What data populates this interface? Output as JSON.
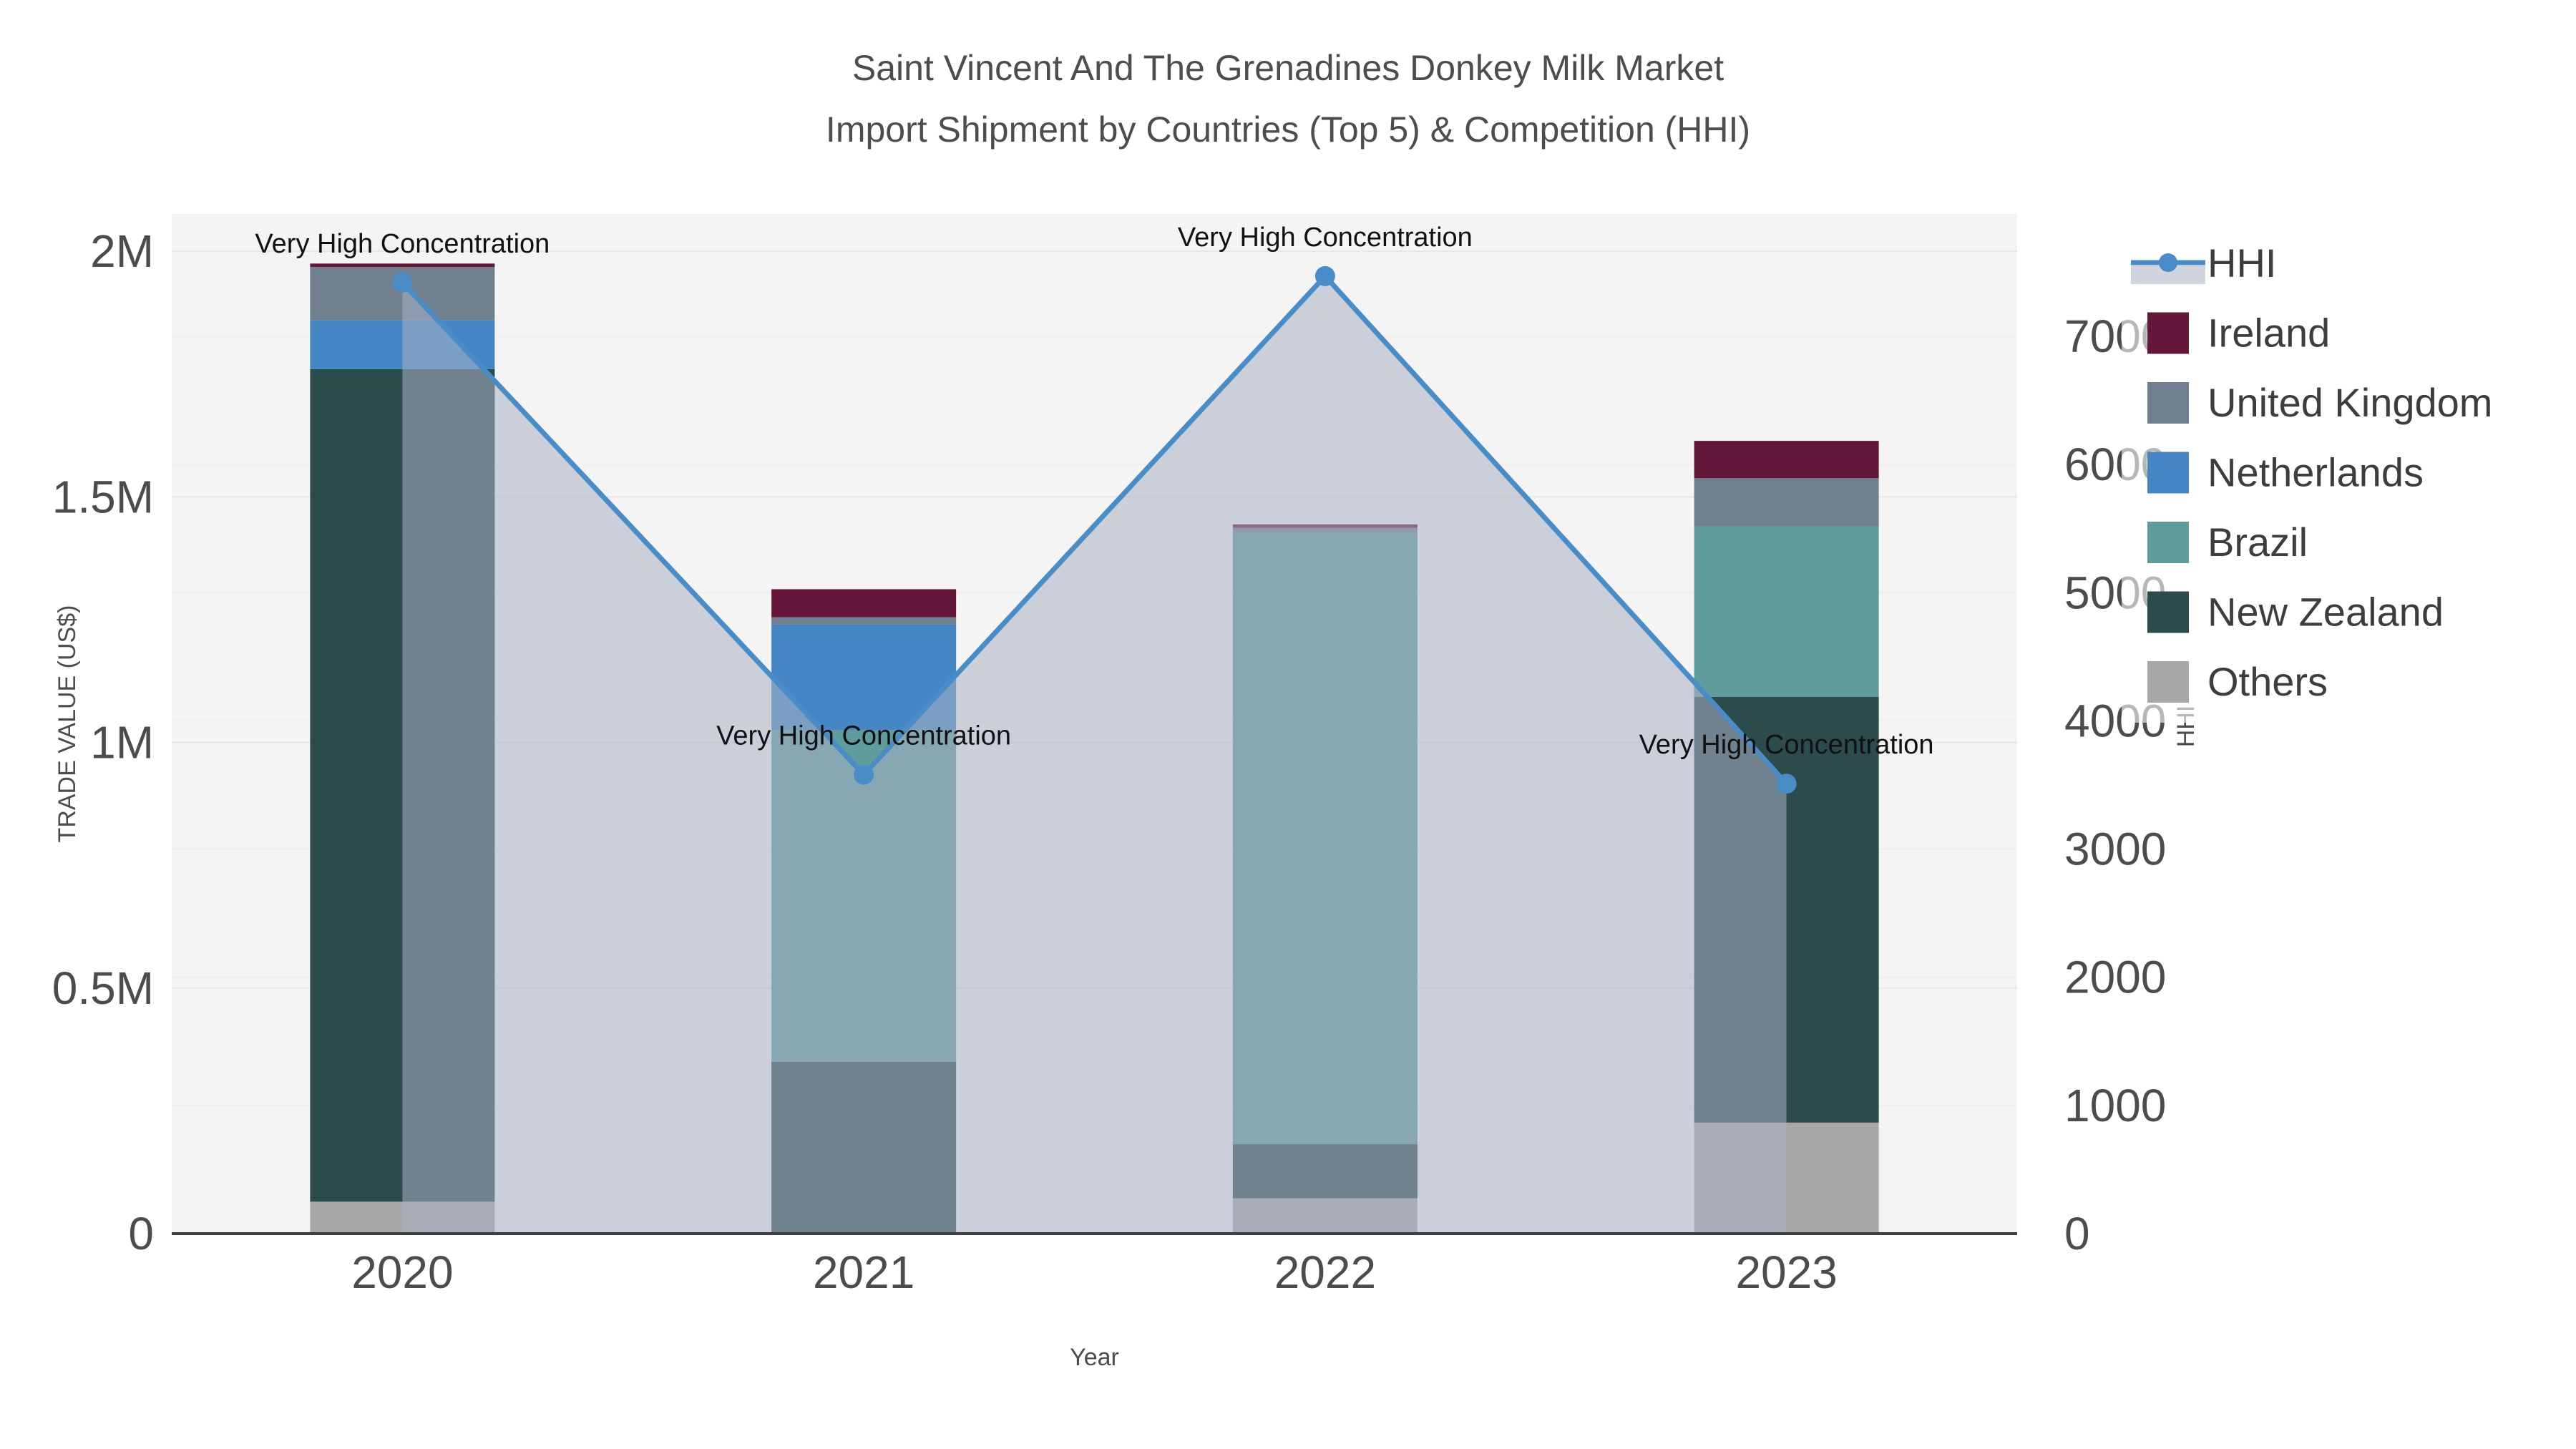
{
  "title": {
    "line1": "Saint Vincent And The Grenadines Donkey Milk Market",
    "line2": "Import Shipment by Countries (Top 5) & Competition (HHI)"
  },
  "chart_data": {
    "type": "combo-stacked-bar-with-line-area",
    "categories": [
      "2020",
      "2021",
      "2022",
      "2023"
    ],
    "bar_series_bottom_to_top": [
      {
        "name": "Others",
        "color": "#a8a8a8",
        "values": [
          65000,
          0,
          72000,
          226000
        ]
      },
      {
        "name": "New Zealand",
        "color": "#2c4b4d",
        "values": [
          1695000,
          350000,
          110000,
          867000
        ]
      },
      {
        "name": "Brazil",
        "color": "#609b9d",
        "values": [
          0,
          675000,
          1245000,
          347000
        ]
      },
      {
        "name": "Netherlands",
        "color": "#4587c5",
        "values": [
          100000,
          215000,
          0,
          0
        ]
      },
      {
        "name": "United Kingdom",
        "color": "#70808f",
        "values": [
          108000,
          15000,
          10000,
          98000
        ]
      },
      {
        "name": "Ireland",
        "color": "#651739",
        "values": [
          7000,
          57000,
          7000,
          76000
        ]
      }
    ],
    "line_series": {
      "name": "HHI",
      "values": [
        7420,
        3580,
        7470,
        3510
      ],
      "color": "#4a8cc6",
      "area_fill": "rgba(167,176,196,0.55)"
    },
    "annotations": [
      {
        "text": "Very High Concentration",
        "category": "2020"
      },
      {
        "text": "Very High Concentration",
        "category": "2021"
      },
      {
        "text": "Very High Concentration",
        "category": "2022"
      },
      {
        "text": "Very High Concentration",
        "category": "2023"
      }
    ],
    "x_axis": {
      "title": "Year",
      "tick_labels": [
        "2020",
        "2021",
        "2022",
        "2023"
      ]
    },
    "y_left": {
      "title": "TRADE VALUE (US$)",
      "tick_labels": [
        "0",
        "0.5M",
        "1M",
        "1.5M",
        "2M"
      ],
      "tick_values": [
        0,
        500000,
        1000000,
        1500000,
        2000000
      ],
      "range_max": 2076000,
      "grid": true
    },
    "y_right": {
      "title": "HHI",
      "tick_labels": [
        "0",
        "1000",
        "2000",
        "3000",
        "4000",
        "5000",
        "6000",
        "7000"
      ],
      "tick_values": [
        0,
        1000,
        2000,
        3000,
        4000,
        5000,
        6000,
        7000
      ],
      "range_max": 7955,
      "grid": true
    },
    "legend": {
      "position": "right",
      "entries": [
        {
          "label": "HHI",
          "type": "line"
        },
        {
          "label": "Ireland",
          "type": "square",
          "color": "#651739"
        },
        {
          "label": "United Kingdom",
          "type": "square",
          "color": "#70808f"
        },
        {
          "label": "Netherlands",
          "type": "square",
          "color": "#4587c5"
        },
        {
          "label": "Brazil",
          "type": "square",
          "color": "#609b9d"
        },
        {
          "label": "New Zealand",
          "type": "square",
          "color": "#2c4b4d"
        },
        {
          "label": "Others",
          "type": "square",
          "color": "#a8a8a8"
        }
      ]
    },
    "colors": {
      "plot_background": "#f4f4f4",
      "paper_background": "#ffffff",
      "grid_left": "#e7e7e7",
      "grid_right": "#efefef",
      "axis_line": "#3f3f3f",
      "tick_text": "#4c4c4c",
      "title_text": "#4d4d4d",
      "annotation_text": "#111111"
    }
  }
}
